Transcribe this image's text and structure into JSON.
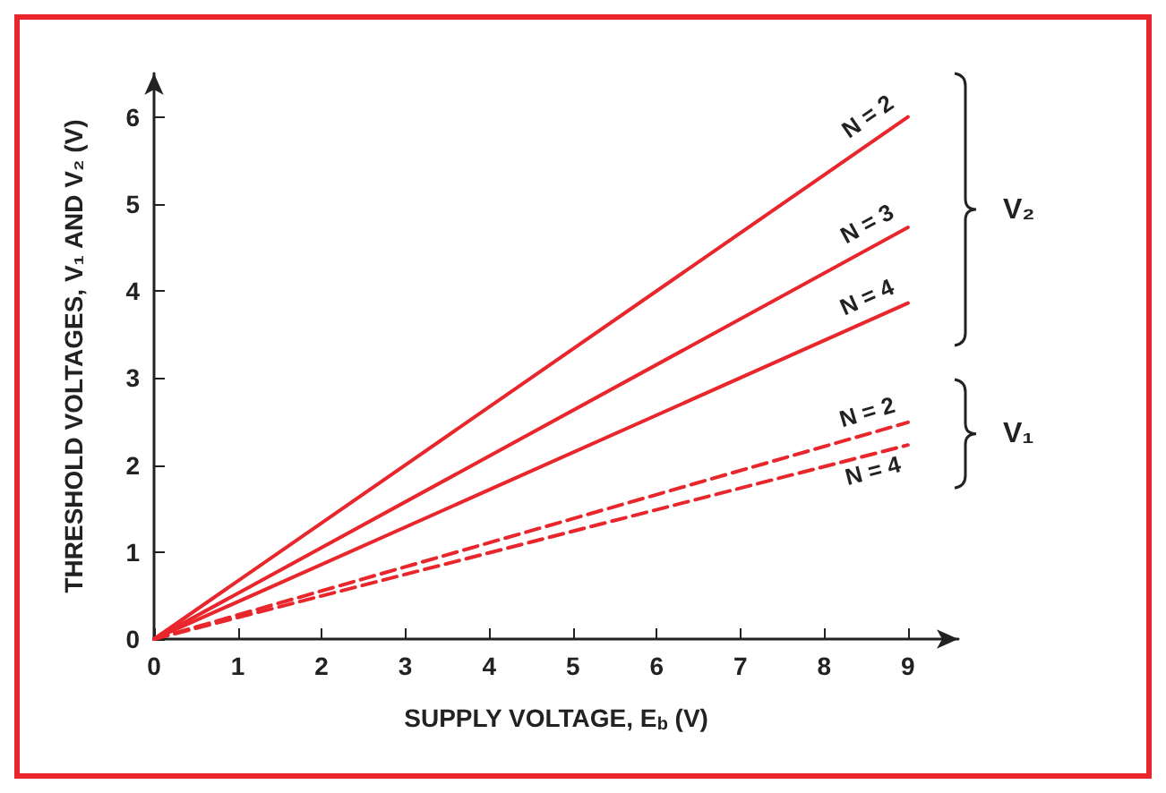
{
  "chart_data": {
    "type": "line",
    "xlabel": "SUPPLY VOLTAGE, E$_{b}$ (V)",
    "ylabel": "THRESHOLD VOLTAGES, V₁ AND V₂ (V)",
    "x": [
      0,
      9
    ],
    "series": [
      {
        "name": "N = 2",
        "color": "#e8262b",
        "values": [
          0,
          6.0
        ],
        "line_style": "solid"
      },
      {
        "name": "N = 3",
        "color": "#e8262b",
        "values": [
          0,
          4.73
        ],
        "line_style": "solid"
      },
      {
        "name": "N = 4",
        "color": "#e8262b",
        "values": [
          0,
          3.86
        ],
        "line_style": "solid"
      },
      {
        "name": "N = 2",
        "color": "#e8262b",
        "values": [
          0,
          2.49
        ],
        "line_style": "dashed"
      },
      {
        "name": "N = 4",
        "color": "#e8262b",
        "values": [
          0,
          2.23
        ],
        "line_style": "dashed"
      }
    ],
    "annotations": [
      "V₂",
      "V₁"
    ],
    "xlim": [
      0,
      9.6
    ],
    "ylim": [
      0,
      6.5
    ],
    "xticks": [
      0,
      1,
      2,
      3,
      4,
      5,
      6,
      7,
      8,
      9
    ],
    "yticks": [
      0,
      1,
      2,
      3,
      4,
      5,
      6
    ],
    "grid": false,
    "legend": false,
    "marker": "none"
  }
}
